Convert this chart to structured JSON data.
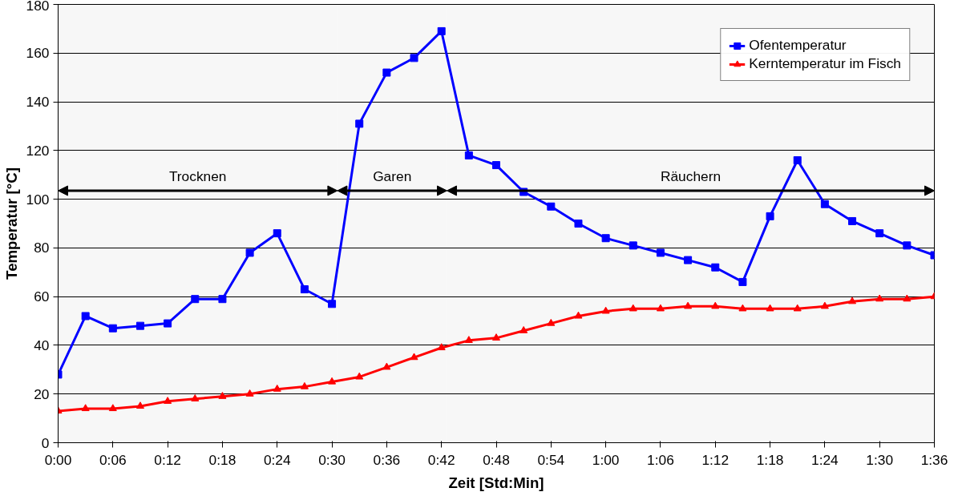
{
  "chart_data": {
    "type": "line",
    "xlabel": "Zeit [Std:Min]",
    "ylabel": "Temperatur [°C]",
    "x": [
      0,
      0.05,
      0.1,
      0.15,
      0.2,
      0.25,
      0.3,
      0.35,
      0.4,
      0.45,
      0.5,
      0.55,
      0.6,
      0.65,
      0.7,
      0.75,
      0.8,
      0.85,
      0.9,
      0.95,
      1.0,
      1.05,
      1.1,
      1.15,
      1.2,
      1.25,
      1.3,
      1.35,
      1.4,
      1.45,
      1.5,
      1.55,
      1.6
    ],
    "series": [
      {
        "name": "Ofentemperatur",
        "color": "#0000ff",
        "marker": "square",
        "values": [
          28,
          52,
          47,
          48,
          49,
          59,
          59,
          78,
          86,
          63,
          57,
          131,
          152,
          158,
          169,
          118,
          114,
          103,
          97,
          90,
          84,
          81,
          78,
          75,
          72,
          66,
          93,
          116,
          98,
          91,
          86,
          81,
          77
        ]
      },
      {
        "name": "Kerntemperatur im Fisch",
        "color": "#ff0000",
        "marker": "triangle",
        "values": [
          13,
          14,
          14,
          15,
          17,
          18,
          19,
          20,
          22,
          23,
          25,
          27,
          31,
          35,
          39,
          42,
          43,
          46,
          49,
          52,
          54,
          55,
          55,
          56,
          56,
          55,
          55,
          55,
          56,
          58,
          59,
          59,
          60
        ]
      }
    ],
    "xlim": [
      0,
      1.6
    ],
    "xticks": [
      {
        "value": 0,
        "label": "0:00"
      },
      {
        "value": 0.1,
        "label": "0:06"
      },
      {
        "value": 0.2,
        "label": "0:12"
      },
      {
        "value": 0.3,
        "label": "0:18"
      },
      {
        "value": 0.4,
        "label": "0:24"
      },
      {
        "value": 0.5,
        "label": "0:30"
      },
      {
        "value": 0.6,
        "label": "0:36"
      },
      {
        "value": 0.7,
        "label": "0:42"
      },
      {
        "value": 0.8,
        "label": "0:48"
      },
      {
        "value": 0.9,
        "label": "0:54"
      },
      {
        "value": 1.0,
        "label": "1:00"
      },
      {
        "value": 1.1,
        "label": "1:06"
      },
      {
        "value": 1.2,
        "label": "1:12"
      },
      {
        "value": 1.3,
        "label": "1:18"
      },
      {
        "value": 1.4,
        "label": "1:24"
      },
      {
        "value": 1.5,
        "label": "1:30"
      },
      {
        "value": 1.6,
        "label": "1:36"
      }
    ],
    "ylim": [
      0,
      180
    ],
    "yticks": [
      0,
      20,
      40,
      60,
      80,
      100,
      120,
      140,
      160,
      180
    ],
    "grid": "y",
    "legend": "top right",
    "line_style": "solid",
    "bands": [
      {
        "axis": "x",
        "from": 0,
        "to": 0.51,
        "label": "Trocknen",
        "color": "#000000"
      },
      {
        "axis": "x",
        "from": 0.51,
        "to": 0.71,
        "label": "Garen",
        "color": "#000000"
      },
      {
        "axis": "x",
        "from": 0.71,
        "to": 1.6,
        "label": "Räuchern",
        "color": "#000000"
      }
    ]
  }
}
